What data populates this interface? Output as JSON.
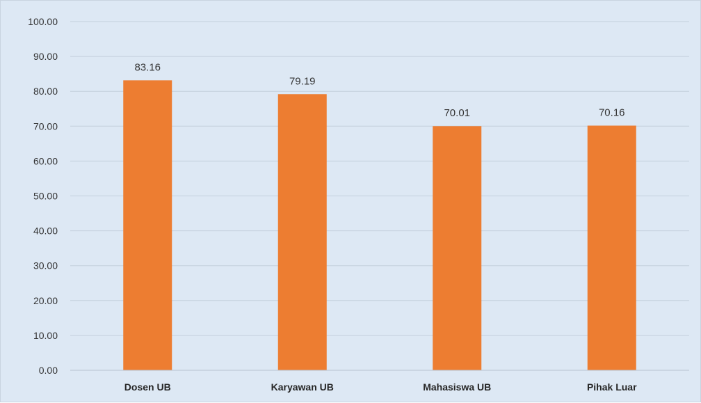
{
  "chart_data": {
    "type": "bar",
    "categories": [
      "Dosen UB",
      "Karyawan UB",
      "Mahasiswa UB",
      "Pihak Luar"
    ],
    "values": [
      83.16,
      79.19,
      70.01,
      70.16
    ],
    "value_labels": [
      "83.16",
      "79.19",
      "70.01",
      "70.16"
    ],
    "title": "",
    "xlabel": "",
    "ylabel": "",
    "ylim": [
      0,
      100
    ],
    "y_ticks": [
      "0.00",
      "10.00",
      "20.00",
      "30.00",
      "40.00",
      "50.00",
      "60.00",
      "70.00",
      "80.00",
      "90.00",
      "100.00"
    ],
    "grid": true,
    "legend": "none",
    "colors": {
      "bar": "#ed7d31",
      "background": "#dde8f4",
      "gridline": "#c3cfdc"
    }
  }
}
